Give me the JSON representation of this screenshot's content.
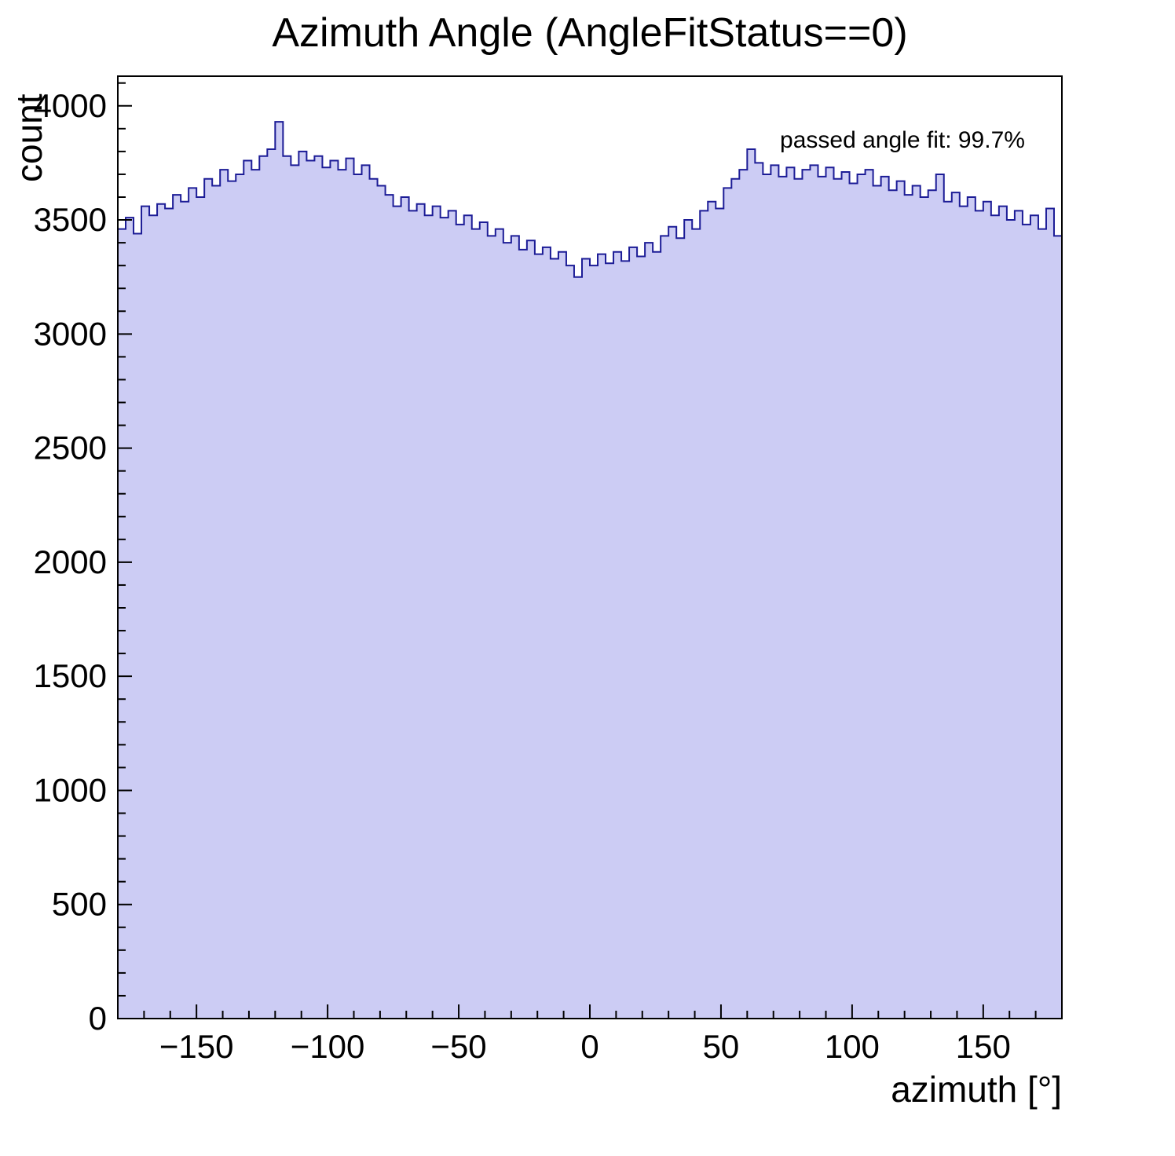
{
  "chart_data": {
    "type": "bar",
    "subtype": "histogram-step-filled",
    "title": "Azimuth Angle (AngleFitStatus==0)",
    "xlabel": "azimuth [°]",
    "ylabel": "count",
    "annotation": "passed angle fit: 99.7%",
    "legend_position": "none",
    "grid": false,
    "xlim": [
      -180,
      180
    ],
    "ylim": [
      0,
      4130
    ],
    "x_bin_start": -180,
    "x_bin_width": 3,
    "x_minor_step": 10,
    "x_major_step": 50,
    "y_minor_step": 100,
    "y_major_step": 500,
    "xticks": {
      "values": [
        -150,
        -100,
        -50,
        0,
        50,
        100,
        150
      ],
      "labels": [
        "−150",
        "−100",
        "−50",
        "0",
        "50",
        "100",
        "150"
      ]
    },
    "yticks": {
      "values": [
        0,
        500,
        1000,
        1500,
        2000,
        2500,
        3000,
        3500,
        4000
      ],
      "labels": [
        "0",
        "500",
        "1000",
        "1500",
        "2000",
        "2500",
        "3000",
        "3500",
        "4000"
      ]
    },
    "fill_color": "#ccccf4",
    "line_color": "#1c1c96",
    "frame_color": "#000000",
    "values": [
      3460,
      3510,
      3440,
      3560,
      3520,
      3570,
      3550,
      3610,
      3580,
      3640,
      3600,
      3680,
      3650,
      3720,
      3670,
      3700,
      3760,
      3720,
      3780,
      3810,
      3930,
      3780,
      3740,
      3800,
      3760,
      3780,
      3730,
      3760,
      3720,
      3770,
      3700,
      3740,
      3680,
      3650,
      3610,
      3560,
      3600,
      3540,
      3570,
      3520,
      3560,
      3510,
      3540,
      3480,
      3520,
      3460,
      3490,
      3430,
      3460,
      3400,
      3430,
      3370,
      3410,
      3350,
      3380,
      3330,
      3360,
      3300,
      3250,
      3330,
      3300,
      3350,
      3310,
      3360,
      3320,
      3380,
      3340,
      3400,
      3360,
      3430,
      3470,
      3420,
      3500,
      3460,
      3540,
      3580,
      3550,
      3640,
      3680,
      3720,
      3810,
      3750,
      3700,
      3740,
      3690,
      3730,
      3680,
      3720,
      3740,
      3690,
      3730,
      3680,
      3710,
      3660,
      3700,
      3720,
      3650,
      3690,
      3630,
      3670,
      3610,
      3650,
      3600,
      3630,
      3700,
      3580,
      3620,
      3560,
      3600,
      3540,
      3580,
      3520,
      3560,
      3500,
      3540,
      3480,
      3520,
      3460,
      3550,
      3430
    ]
  }
}
